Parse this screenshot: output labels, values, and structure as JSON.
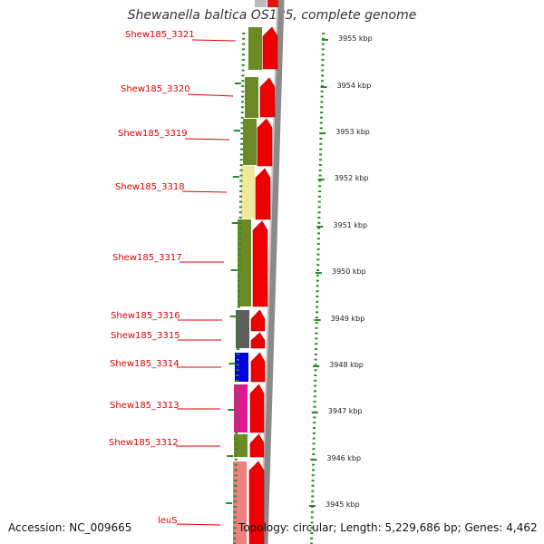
{
  "title": "Shewanella baltica OS185, complete genome",
  "footer": {
    "accession": "Accession: NC_009665",
    "summary": "Topology: circular; Length: 5,229,686 bp; Genes: 4,462"
  },
  "colors": {
    "olive": "#6b8a26",
    "pale_yellow": "#efe79a",
    "dark_gray": "#5e5e5e",
    "blue": "#0000e0",
    "magenta": "#e0188f",
    "salmon": "#ee8080",
    "red": "#ee0000",
    "label_red": "#e00000",
    "tick_green": "#2a8a2a"
  },
  "kbp_labels": [
    "3955 kbp",
    "3954 kbp",
    "3953 kbp",
    "3952 kbp",
    "3951 kbp",
    "3950 kbp",
    "3949 kbp",
    "3948 kbp",
    "3947 kbp",
    "3946 kbp",
    "3945 kbp"
  ],
  "genes": [
    {
      "name": "Shew185_3321"
    },
    {
      "name": "Shew185_3320"
    },
    {
      "name": "Shew185_3319"
    },
    {
      "name": "Shew185_3318"
    },
    {
      "name": "Shew185_3317"
    },
    {
      "name": "Shew185_3316"
    },
    {
      "name": "Shew185_3315"
    },
    {
      "name": "Shew185_3314"
    },
    {
      "name": "Shew185_3313"
    },
    {
      "name": "Shew185_3312"
    },
    {
      "name": "leuS"
    }
  ]
}
